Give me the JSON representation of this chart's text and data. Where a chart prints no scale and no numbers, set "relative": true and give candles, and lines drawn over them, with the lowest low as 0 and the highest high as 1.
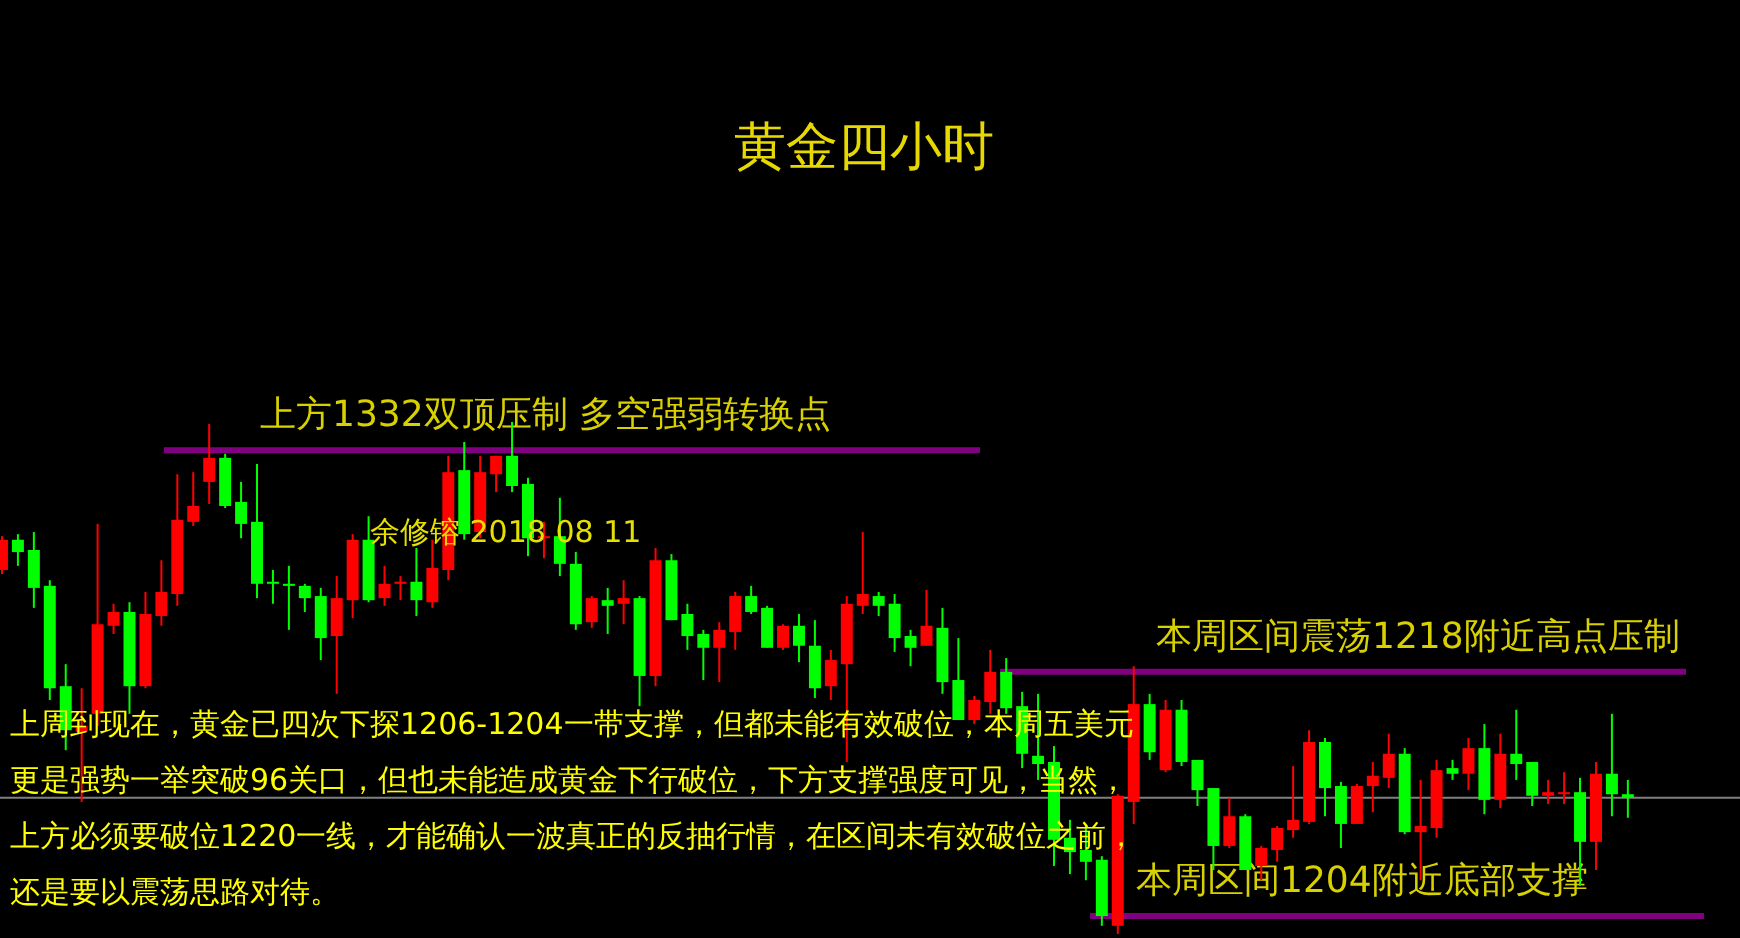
{
  "chart_data": {
    "type": "candlestick",
    "title": "黄金四小时",
    "relative": true,
    "categories": [
      null,
      null,
      null,
      null,
      null,
      null,
      null,
      null,
      null,
      null,
      null,
      null,
      null,
      null,
      null,
      null,
      null,
      null,
      null,
      null,
      null,
      null,
      null,
      null,
      null,
      null,
      null,
      null,
      null,
      null,
      null,
      null,
      null,
      null,
      null,
      null,
      null,
      null,
      null,
      null,
      null,
      null,
      null,
      null,
      null,
      null,
      null,
      null,
      null,
      null,
      null,
      null,
      null,
      null,
      null,
      null,
      null,
      null,
      null,
      null,
      null,
      null,
      null,
      null,
      null,
      null,
      null,
      null,
      null,
      null,
      null,
      null,
      null,
      null,
      null,
      null,
      null,
      null,
      null,
      null,
      null,
      null,
      null,
      null,
      null,
      null,
      null,
      null,
      null,
      null,
      null,
      null,
      null,
      null,
      null,
      null,
      null,
      null,
      null,
      null,
      null,
      null,
      null
    ],
    "colors": [
      "#ff0000",
      "#00ff00",
      "#00ff00",
      "#00ff00",
      "#00ff00",
      "#ff0000",
      "#ff0000",
      "#ff0000",
      "#00ff00",
      "#ff0000",
      "#ff0000",
      "#ff0000",
      "#ff0000",
      "#ff0000",
      "#00ff00",
      "#00ff00",
      "#00ff00",
      "#00ff00",
      "#00ff00",
      "#00ff00",
      "#00ff00",
      "#ff0000",
      "#ff0000",
      "#00ff00",
      "#ff0000",
      "#ff0000",
      "#00ff00",
      "#ff0000",
      "#ff0000",
      "#00ff00",
      "#ff0000",
      "#ff0000",
      "#00ff00",
      "#00ff00",
      "#ff0000",
      "#00ff00",
      "#00ff00",
      "#ff0000",
      "#00ff00",
      "#ff0000",
      "#00ff00",
      "#ff0000",
      "#00ff00",
      "#00ff00",
      "#00ff00",
      "#ff0000",
      "#ff0000",
      "#00ff00",
      "#00ff00",
      "#ff0000",
      "#00ff00",
      "#00ff00",
      "#ff0000",
      "#ff0000",
      "#ff0000",
      "#00ff00",
      "#00ff00",
      "#00ff00",
      "#ff0000",
      "#00ff00",
      "#00ff00",
      "#ff0000",
      "#ff0000",
      "#00ff00",
      "#00ff00",
      "#00ff00",
      "#00ff00",
      "#00ff00",
      "#00ff00",
      "#00ff00",
      "#ff0000",
      "#ff0000",
      "#00ff00",
      "#ff0000",
      "#00ff00",
      "#00ff00",
      "#00ff00",
      "#ff0000",
      "#00ff00",
      "#ff0000",
      "#ff0000",
      "#ff0000",
      "#ff0000",
      "#00ff00",
      "#00ff00",
      "#ff0000",
      "#ff0000",
      "#ff0000",
      "#00ff00",
      "#ff0000",
      "#ff0000",
      "#00ff00",
      "#ff0000",
      "#00ff00",
      "#ff0000",
      "#00ff00",
      "#00ff00",
      "#ff0000",
      "#ff0000",
      "#00ff00",
      "#ff0000",
      "#00ff00",
      "#00ff00"
    ],
    "ohlc": [
      [
        0.711,
        0.777,
        0.703,
        0.77
      ],
      [
        0.77,
        0.781,
        0.719,
        0.746
      ],
      [
        0.75,
        0.785,
        0.637,
        0.676
      ],
      [
        0.68,
        0.691,
        0.457,
        0.48
      ],
      [
        0.484,
        0.527,
        0.359,
        0.398
      ],
      [
        0.395,
        0.48,
        0.258,
        0.406
      ],
      [
        0.43,
        0.801,
        0.406,
        0.605
      ],
      [
        0.602,
        0.645,
        0.586,
        0.629
      ],
      [
        0.629,
        0.648,
        0.43,
        0.484
      ],
      [
        0.484,
        0.668,
        0.48,
        0.625
      ],
      [
        0.621,
        0.73,
        0.602,
        0.668
      ],
      [
        0.664,
        0.898,
        0.641,
        0.809
      ],
      [
        0.805,
        0.902,
        0.797,
        0.836
      ],
      [
        0.883,
        0.996,
        0.84,
        0.93
      ],
      [
        0.93,
        0.938,
        0.832,
        0.836
      ],
      [
        0.844,
        0.883,
        0.773,
        0.801
      ],
      [
        0.805,
        0.918,
        0.656,
        0.684
      ],
      [
        0.688,
        0.711,
        0.645,
        0.684
      ],
      [
        0.684,
        0.719,
        0.594,
        0.68
      ],
      [
        0.68,
        0.684,
        0.629,
        0.656
      ],
      [
        0.66,
        0.676,
        0.535,
        0.578
      ],
      [
        0.582,
        0.699,
        0.469,
        0.656
      ],
      [
        0.652,
        0.781,
        0.617,
        0.77
      ],
      [
        0.77,
        0.816,
        0.648,
        0.652
      ],
      [
        0.656,
        0.719,
        0.641,
        0.684
      ],
      [
        0.684,
        0.699,
        0.652,
        0.688
      ],
      [
        0.688,
        0.754,
        0.621,
        0.652
      ],
      [
        0.648,
        0.77,
        0.637,
        0.715
      ],
      [
        0.711,
        0.934,
        0.691,
        0.902
      ],
      [
        0.906,
        0.961,
        0.77,
        0.781
      ],
      [
        0.785,
        0.934,
        0.773,
        0.902
      ],
      [
        0.898,
        0.934,
        0.863,
        0.934
      ],
      [
        0.934,
        1,
        0.863,
        0.875
      ],
      [
        0.879,
        0.891,
        0.738,
        0.773
      ],
      [
        0.773,
        0.805,
        0.734,
        0.777
      ],
      [
        0.777,
        0.852,
        0.699,
        0.723
      ],
      [
        0.723,
        0.746,
        0.594,
        0.605
      ],
      [
        0.609,
        0.66,
        0.598,
        0.656
      ],
      [
        0.652,
        0.676,
        0.586,
        0.641
      ],
      [
        0.645,
        0.691,
        0.605,
        0.656
      ],
      [
        0.656,
        0.66,
        0.445,
        0.504
      ],
      [
        0.504,
        0.754,
        0.484,
        0.73
      ],
      [
        0.73,
        0.742,
        0.613,
        0.613
      ],
      [
        0.625,
        0.645,
        0.555,
        0.582
      ],
      [
        0.586,
        0.594,
        0.496,
        0.559
      ],
      [
        0.559,
        0.609,
        0.492,
        0.594
      ],
      [
        0.59,
        0.668,
        0.555,
        0.66
      ],
      [
        0.66,
        0.68,
        0.625,
        0.629
      ],
      [
        0.637,
        0.641,
        0.559,
        0.559
      ],
      [
        0.559,
        0.605,
        0.555,
        0.602
      ],
      [
        0.602,
        0.625,
        0.531,
        0.563
      ],
      [
        0.563,
        0.613,
        0.461,
        0.48
      ],
      [
        0.484,
        0.555,
        0.457,
        0.535
      ],
      [
        0.527,
        0.66,
        0.336,
        0.645
      ],
      [
        0.641,
        0.785,
        0.625,
        0.664
      ],
      [
        0.66,
        0.668,
        0.621,
        0.641
      ],
      [
        0.645,
        0.664,
        0.551,
        0.578
      ],
      [
        0.582,
        0.594,
        0.523,
        0.559
      ],
      [
        0.563,
        0.672,
        0.563,
        0.602
      ],
      [
        0.598,
        0.637,
        0.469,
        0.492
      ],
      [
        0.496,
        0.578,
        0.418,
        0.418
      ],
      [
        0.418,
        0.465,
        0.41,
        0.457
      ],
      [
        0.453,
        0.555,
        0.43,
        0.512
      ],
      [
        0.512,
        0.539,
        0.43,
        0.441
      ],
      [
        0.445,
        0.473,
        0.324,
        0.352
      ],
      [
        0.348,
        0.469,
        0.301,
        0.332
      ],
      [
        0.336,
        0.367,
        0.133,
        0.184
      ],
      [
        0.188,
        0.223,
        0.117,
        0.16
      ],
      [
        0.164,
        0.211,
        0.105,
        0.141
      ],
      [
        0.145,
        0.152,
        0.016,
        0.035
      ],
      [
        0.016,
        0.273,
        0,
        0.27
      ],
      [
        0.258,
        0.523,
        0.215,
        0.449
      ],
      [
        0.449,
        0.469,
        0.34,
        0.355
      ],
      [
        0.32,
        0.457,
        0.316,
        0.438
      ],
      [
        0.438,
        0.457,
        0.328,
        0.336
      ],
      [
        0.34,
        0.34,
        0.25,
        0.281
      ],
      [
        0.285,
        0.285,
        0.125,
        0.172
      ],
      [
        0.172,
        0.266,
        0.168,
        0.23
      ],
      [
        0.23,
        0.234,
        0.125,
        0.125
      ],
      [
        0.133,
        0.172,
        0.105,
        0.168
      ],
      [
        0.164,
        0.211,
        0.141,
        0.207
      ],
      [
        0.203,
        0.328,
        0.188,
        0.223
      ],
      [
        0.219,
        0.398,
        0.215,
        0.375
      ],
      [
        0.375,
        0.383,
        0.23,
        0.285
      ],
      [
        0.289,
        0.297,
        0.168,
        0.215
      ],
      [
        0.215,
        0.293,
        0.215,
        0.289
      ],
      [
        0.289,
        0.336,
        0.238,
        0.309
      ],
      [
        0.305,
        0.391,
        0.285,
        0.352
      ],
      [
        0.352,
        0.363,
        0.195,
        0.199
      ],
      [
        0.199,
        0.301,
        0.105,
        0.211
      ],
      [
        0.207,
        0.34,
        0.188,
        0.32
      ],
      [
        0.324,
        0.34,
        0.301,
        0.313
      ],
      [
        0.313,
        0.383,
        0.281,
        0.363
      ],
      [
        0.363,
        0.41,
        0.234,
        0.262
      ],
      [
        0.262,
        0.391,
        0.246,
        0.352
      ],
      [
        0.352,
        0.438,
        0.301,
        0.332
      ],
      [
        0.336,
        0.336,
        0.25,
        0.27
      ],
      [
        0.27,
        0.301,
        0.254,
        0.277
      ],
      [
        0.273,
        0.316,
        0.254,
        0.277
      ],
      [
        0.277,
        0.305,
        0.094,
        0.18
      ],
      [
        0.18,
        0.336,
        0.125,
        0.313
      ],
      [
        0.313,
        0.43,
        0.23,
        0.273
      ],
      [
        0.273,
        0.301,
        0.227,
        0.266
      ]
    ],
    "ref_lines": [
      {
        "axis": "y",
        "value": 0.945,
        "label": "上方1332双顶压制 多空强弱转换点",
        "color": "#800080"
      },
      {
        "axis": "y",
        "value": 0.512,
        "label": "本周区间震荡1218附近高点压制",
        "color": "#800080"
      },
      {
        "axis": "y",
        "value": 0.035,
        "label": "本周区间1204附近底部支撑",
        "color": "#800080"
      },
      {
        "axis": "y",
        "value": 0.266,
        "color": "#808080"
      }
    ],
    "annotations": [
      "余修镕 2018 08 11",
      "上周到现在，黄金已四次下探1206-1204一带支撑，但都未能有效破位，本周五美元更是强势一举突破96关口，但也未能造成黄金下行破位，下方支撑强度可见，当然，上方必须要破位1220一线，才能确认一波真正的反抽行情，在区间未有效破位之前，还是要以震荡思路对待。"
    ]
  }
}
